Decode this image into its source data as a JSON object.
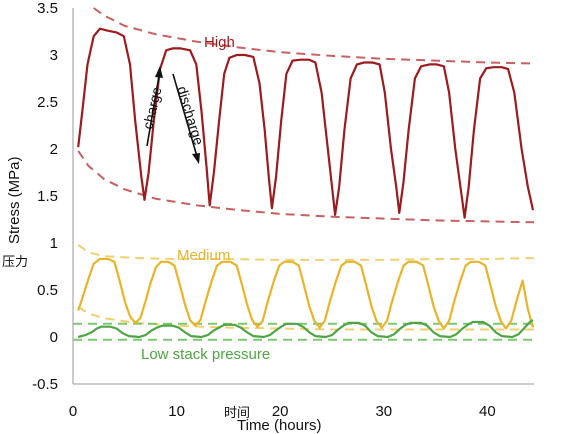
{
  "chart_data": {
    "type": "line",
    "xlabel": "Time (hours)",
    "xlabel_cjk": "时间",
    "ylabel": "Stress (MPa)",
    "ylabel_cjk": "压力",
    "xlim": [
      0,
      44.5
    ],
    "ylim": [
      -0.5,
      3.5
    ],
    "xticks": [
      0,
      10,
      20,
      30,
      40
    ],
    "yticks": [
      -0.5,
      0,
      0.5,
      1,
      1.5,
      2,
      2.5,
      3,
      3.5
    ],
    "grid": false,
    "annotations": {
      "charge": "charge",
      "discharge": "discharge"
    },
    "series": [
      {
        "name": "High",
        "color": "#9b1b1e",
        "points": [
          [
            0.5,
            2.02
          ],
          [
            0.9,
            2.4
          ],
          [
            1.4,
            2.9
          ],
          [
            2,
            3.2
          ],
          [
            2.6,
            3.28
          ],
          [
            3.3,
            3.26
          ],
          [
            4.2,
            3.24
          ],
          [
            4.9,
            3.2
          ],
          [
            5.5,
            2.9
          ],
          [
            6,
            2.3
          ],
          [
            6.6,
            1.7
          ],
          [
            6.9,
            1.46
          ],
          [
            7.3,
            1.75
          ],
          [
            7.8,
            2.3
          ],
          [
            8.4,
            2.85
          ],
          [
            9,
            3.05
          ],
          [
            9.6,
            3.07
          ],
          [
            10.4,
            3.07
          ],
          [
            11.3,
            3.05
          ],
          [
            11.9,
            2.9
          ],
          [
            12.4,
            2.4
          ],
          [
            12.9,
            1.8
          ],
          [
            13.2,
            1.4
          ],
          [
            13.6,
            1.75
          ],
          [
            14.1,
            2.3
          ],
          [
            14.6,
            2.8
          ],
          [
            15.1,
            2.97
          ],
          [
            15.8,
            3.0
          ],
          [
            16.6,
            3.0
          ],
          [
            17.4,
            2.98
          ],
          [
            18,
            2.7
          ],
          [
            18.5,
            2.2
          ],
          [
            18.9,
            1.7
          ],
          [
            19.2,
            1.37
          ],
          [
            19.6,
            1.7
          ],
          [
            20.1,
            2.3
          ],
          [
            20.6,
            2.8
          ],
          [
            21.2,
            2.94
          ],
          [
            22,
            2.95
          ],
          [
            22.8,
            2.95
          ],
          [
            23.4,
            2.92
          ],
          [
            24,
            2.6
          ],
          [
            24.5,
            2.1
          ],
          [
            25,
            1.6
          ],
          [
            25.3,
            1.3
          ],
          [
            25.7,
            1.6
          ],
          [
            26.2,
            2.2
          ],
          [
            26.8,
            2.75
          ],
          [
            27.4,
            2.9
          ],
          [
            28.1,
            2.92
          ],
          [
            28.9,
            2.92
          ],
          [
            29.6,
            2.9
          ],
          [
            30.1,
            2.6
          ],
          [
            30.7,
            2.0
          ],
          [
            31.2,
            1.6
          ],
          [
            31.5,
            1.32
          ],
          [
            31.9,
            1.65
          ],
          [
            32.4,
            2.2
          ],
          [
            33,
            2.75
          ],
          [
            33.6,
            2.88
          ],
          [
            34.4,
            2.9
          ],
          [
            35.1,
            2.9
          ],
          [
            35.8,
            2.88
          ],
          [
            36.3,
            2.6
          ],
          [
            36.9,
            2.0
          ],
          [
            37.4,
            1.6
          ],
          [
            37.8,
            1.27
          ],
          [
            38.2,
            1.6
          ],
          [
            38.7,
            2.2
          ],
          [
            39.3,
            2.75
          ],
          [
            39.9,
            2.86
          ],
          [
            40.6,
            2.87
          ],
          [
            41.4,
            2.87
          ],
          [
            42,
            2.85
          ],
          [
            42.6,
            2.6
          ],
          [
            43.3,
            2.0
          ],
          [
            43.9,
            1.6
          ],
          [
            44.4,
            1.35
          ]
        ]
      },
      {
        "name": "Medium",
        "color": "#e8b42a",
        "points": [
          [
            0.5,
            0.28
          ],
          [
            1,
            0.45
          ],
          [
            1.5,
            0.62
          ],
          [
            2,
            0.78
          ],
          [
            2.6,
            0.83
          ],
          [
            3.4,
            0.83
          ],
          [
            4,
            0.8
          ],
          [
            4.5,
            0.6
          ],
          [
            5,
            0.38
          ],
          [
            5.5,
            0.22
          ],
          [
            6,
            0.15
          ],
          [
            6.5,
            0.2
          ],
          [
            7,
            0.38
          ],
          [
            7.5,
            0.58
          ],
          [
            8,
            0.74
          ],
          [
            8.5,
            0.8
          ],
          [
            9.2,
            0.8
          ],
          [
            9.8,
            0.76
          ],
          [
            10.3,
            0.56
          ],
          [
            10.8,
            0.35
          ],
          [
            11.3,
            0.18
          ],
          [
            11.8,
            0.12
          ],
          [
            12.3,
            0.18
          ],
          [
            12.8,
            0.38
          ],
          [
            13.4,
            0.6
          ],
          [
            13.9,
            0.76
          ],
          [
            14.4,
            0.8
          ],
          [
            15.2,
            0.8
          ],
          [
            15.8,
            0.76
          ],
          [
            16.3,
            0.56
          ],
          [
            16.8,
            0.35
          ],
          [
            17.3,
            0.18
          ],
          [
            17.8,
            0.11
          ],
          [
            18.3,
            0.17
          ],
          [
            18.8,
            0.38
          ],
          [
            19.4,
            0.6
          ],
          [
            19.9,
            0.76
          ],
          [
            20.4,
            0.8
          ],
          [
            21.2,
            0.8
          ],
          [
            21.8,
            0.76
          ],
          [
            22.3,
            0.55
          ],
          [
            22.8,
            0.33
          ],
          [
            23.3,
            0.17
          ],
          [
            23.8,
            0.1
          ],
          [
            24.3,
            0.17
          ],
          [
            24.8,
            0.38
          ],
          [
            25.4,
            0.6
          ],
          [
            25.9,
            0.76
          ],
          [
            26.4,
            0.8
          ],
          [
            27.2,
            0.8
          ],
          [
            27.8,
            0.76
          ],
          [
            28.3,
            0.55
          ],
          [
            28.8,
            0.33
          ],
          [
            29.3,
            0.17
          ],
          [
            29.8,
            0.1
          ],
          [
            30.3,
            0.17
          ],
          [
            30.8,
            0.38
          ],
          [
            31.4,
            0.6
          ],
          [
            31.9,
            0.76
          ],
          [
            32.4,
            0.8
          ],
          [
            33.2,
            0.8
          ],
          [
            33.8,
            0.76
          ],
          [
            34.3,
            0.55
          ],
          [
            34.8,
            0.33
          ],
          [
            35.3,
            0.17
          ],
          [
            35.8,
            0.09
          ],
          [
            36.3,
            0.17
          ],
          [
            36.8,
            0.38
          ],
          [
            37.4,
            0.6
          ],
          [
            37.9,
            0.76
          ],
          [
            38.4,
            0.8
          ],
          [
            39.2,
            0.8
          ],
          [
            39.8,
            0.76
          ],
          [
            40.3,
            0.55
          ],
          [
            40.8,
            0.33
          ],
          [
            41.3,
            0.17
          ],
          [
            41.8,
            0.09
          ],
          [
            42.3,
            0.17
          ],
          [
            42.8,
            0.38
          ],
          [
            43.4,
            0.6
          ],
          [
            43.9,
            0.3
          ],
          [
            44.4,
            0.1
          ]
        ]
      },
      {
        "name": "Low stack pressure",
        "color": "#4fa545",
        "points": [
          [
            0.5,
            0.0
          ],
          [
            1.2,
            0.02
          ],
          [
            1.8,
            0.05
          ],
          [
            2.3,
            0.09
          ],
          [
            2.7,
            0.11
          ],
          [
            3.6,
            0.11
          ],
          [
            4.2,
            0.09
          ],
          [
            4.8,
            0.04
          ],
          [
            5.4,
            0.01
          ],
          [
            6.4,
            0.0
          ],
          [
            7,
            0.02
          ],
          [
            7.6,
            0.07
          ],
          [
            8.1,
            0.1
          ],
          [
            8.6,
            0.12
          ],
          [
            9.6,
            0.12
          ],
          [
            10.2,
            0.1
          ],
          [
            10.8,
            0.05
          ],
          [
            11.4,
            0.01
          ],
          [
            12.4,
            0.0
          ],
          [
            13,
            0.02
          ],
          [
            13.6,
            0.07
          ],
          [
            14.1,
            0.1
          ],
          [
            14.6,
            0.13
          ],
          [
            15.6,
            0.13
          ],
          [
            16.2,
            0.1
          ],
          [
            16.8,
            0.05
          ],
          [
            17.4,
            0.01
          ],
          [
            18.4,
            0.0
          ],
          [
            19,
            0.02
          ],
          [
            19.6,
            0.07
          ],
          [
            20.1,
            0.11
          ],
          [
            20.6,
            0.14
          ],
          [
            21.6,
            0.14
          ],
          [
            22.2,
            0.11
          ],
          [
            22.8,
            0.05
          ],
          [
            23.4,
            0.01
          ],
          [
            24.4,
            0.0
          ],
          [
            25,
            0.02
          ],
          [
            25.6,
            0.08
          ],
          [
            26.1,
            0.12
          ],
          [
            26.6,
            0.15
          ],
          [
            27.6,
            0.15
          ],
          [
            28.2,
            0.12
          ],
          [
            28.8,
            0.05
          ],
          [
            29.4,
            0.01
          ],
          [
            30.4,
            0.0
          ],
          [
            31,
            0.03
          ],
          [
            31.6,
            0.09
          ],
          [
            32.1,
            0.13
          ],
          [
            32.6,
            0.15
          ],
          [
            33.6,
            0.15
          ],
          [
            34.2,
            0.12
          ],
          [
            34.8,
            0.05
          ],
          [
            35.4,
            0.01
          ],
          [
            36.4,
            0.0
          ],
          [
            37,
            0.03
          ],
          [
            37.6,
            0.09
          ],
          [
            38.1,
            0.13
          ],
          [
            38.6,
            0.16
          ],
          [
            39.6,
            0.16
          ],
          [
            40.2,
            0.12
          ],
          [
            40.8,
            0.05
          ],
          [
            41.4,
            0.01
          ],
          [
            42.4,
            0.0
          ],
          [
            43,
            0.03
          ],
          [
            43.6,
            0.1
          ],
          [
            44.1,
            0.16
          ],
          [
            44.4,
            0.18
          ]
        ]
      }
    ],
    "envelopes": [
      {
        "name": "high-upper",
        "color": "#c86060",
        "points": [
          [
            2,
            3.5
          ],
          [
            3,
            3.42
          ],
          [
            5,
            3.31
          ],
          [
            8,
            3.22
          ],
          [
            12,
            3.14
          ],
          [
            16,
            3.08
          ],
          [
            20,
            3.03
          ],
          [
            25,
            2.99
          ],
          [
            30,
            2.96
          ],
          [
            35,
            2.94
          ],
          [
            40,
            2.92
          ],
          [
            44.5,
            2.91
          ]
        ]
      },
      {
        "name": "high-lower",
        "color": "#c86060",
        "points": [
          [
            0.5,
            1.98
          ],
          [
            1.5,
            1.82
          ],
          [
            3,
            1.68
          ],
          [
            5,
            1.57
          ],
          [
            8,
            1.47
          ],
          [
            12,
            1.4
          ],
          [
            16,
            1.35
          ],
          [
            20,
            1.31
          ],
          [
            25,
            1.28
          ],
          [
            30,
            1.26
          ],
          [
            35,
            1.24
          ],
          [
            40,
            1.23
          ],
          [
            44.5,
            1.22
          ]
        ]
      },
      {
        "name": "medium-upper",
        "color": "#f0d070",
        "points": [
          [
            0.5,
            0.98
          ],
          [
            1.5,
            0.9
          ],
          [
            3,
            0.86
          ],
          [
            6,
            0.84
          ],
          [
            10,
            0.83
          ],
          [
            15,
            0.83
          ],
          [
            20,
            0.82
          ],
          [
            25,
            0.82
          ],
          [
            30,
            0.82
          ],
          [
            35,
            0.83
          ],
          [
            40,
            0.83
          ],
          [
            44.5,
            0.84
          ]
        ]
      },
      {
        "name": "medium-lower",
        "color": "#f0d070",
        "points": [
          [
            0.5,
            0.32
          ],
          [
            1.5,
            0.25
          ],
          [
            3,
            0.2
          ],
          [
            6,
            0.15
          ],
          [
            10,
            0.12
          ],
          [
            15,
            0.1
          ],
          [
            20,
            0.09
          ],
          [
            25,
            0.08
          ],
          [
            30,
            0.08
          ],
          [
            35,
            0.08
          ],
          [
            40,
            0.08
          ],
          [
            44.5,
            0.08
          ]
        ]
      },
      {
        "name": "low-upper",
        "color": "#7cc870",
        "points": [
          [
            0,
            0.14
          ],
          [
            44.5,
            0.14
          ]
        ]
      },
      {
        "name": "low-lower",
        "color": "#7cc870",
        "points": [
          [
            0,
            -0.03
          ],
          [
            44.5,
            -0.03
          ]
        ]
      }
    ]
  }
}
